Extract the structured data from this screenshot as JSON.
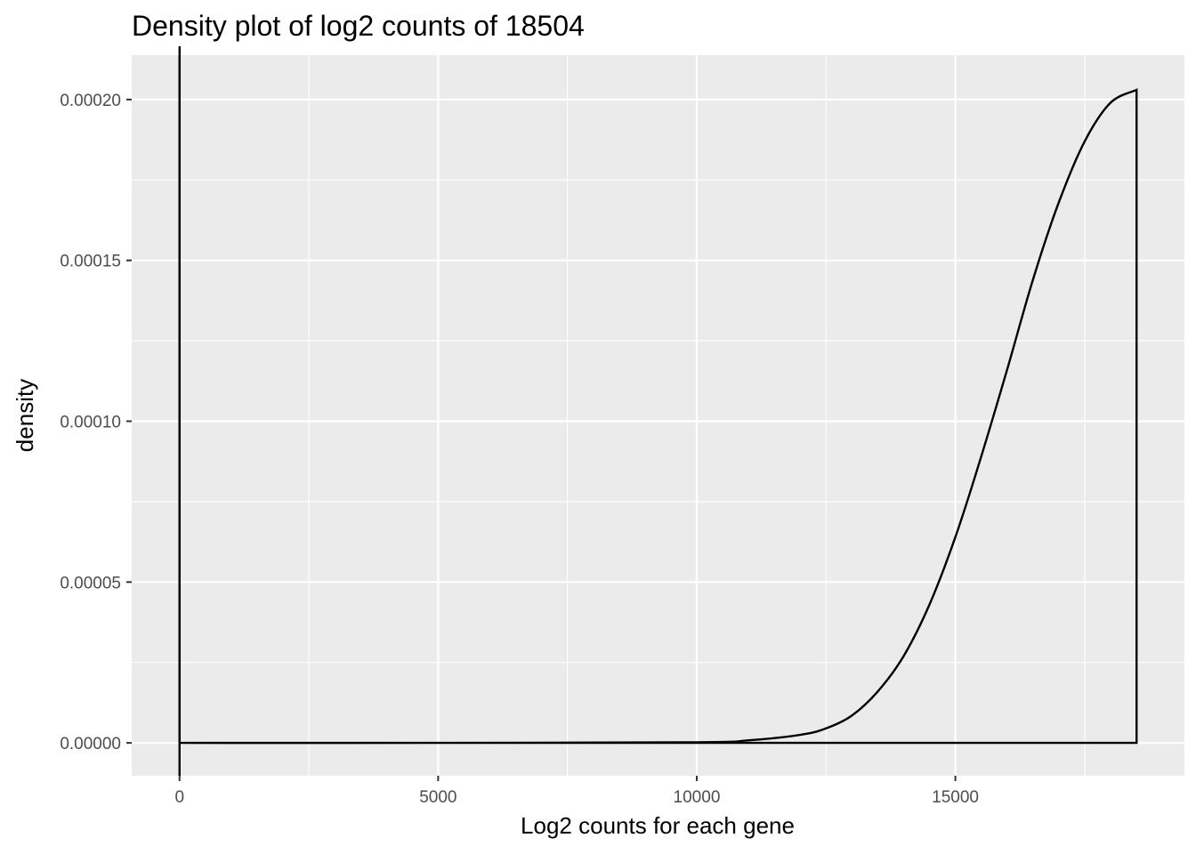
{
  "chart_data": {
    "type": "area",
    "title": "Density plot of log2 counts of 18504",
    "xlabel": "Log2 counts for each gene",
    "ylabel": "density",
    "xlim": [
      -925,
      19429
    ],
    "ylim": [
      -1.02e-05,
      0.0002138
    ],
    "x_ticks": [
      0,
      5000,
      10000,
      15000
    ],
    "x_tick_labels": [
      "0",
      "5000",
      "10000",
      "15000"
    ],
    "y_ticks": [
      0,
      5e-05,
      0.0001,
      0.00015,
      0.0002
    ],
    "y_tick_labels": [
      "0.00000",
      "0.00005",
      "0.00010",
      "0.00015",
      "0.00020"
    ],
    "grid": true,
    "colors": {
      "panel": "#ebebeb",
      "grid": "#ffffff",
      "line": "#000000",
      "fill": "none"
    },
    "series": [
      {
        "x": [
          0,
          5000,
          10000,
          11000,
          12000,
          12500,
          13000,
          13500,
          14000,
          14500,
          15000,
          15500,
          16000,
          16500,
          17000,
          17500,
          18000,
          18504
        ],
        "values": [
          0,
          0,
          2e-07,
          8e-07,
          2.5e-06,
          4.5e-06,
          8.5e-06,
          1.6e-05,
          2.7e-05,
          4.3e-05,
          6.4e-05,
          8.9e-05,
          0.000116,
          0.000144,
          0.000168,
          0.000187,
          0.000199,
          0.000203
        ]
      }
    ]
  }
}
